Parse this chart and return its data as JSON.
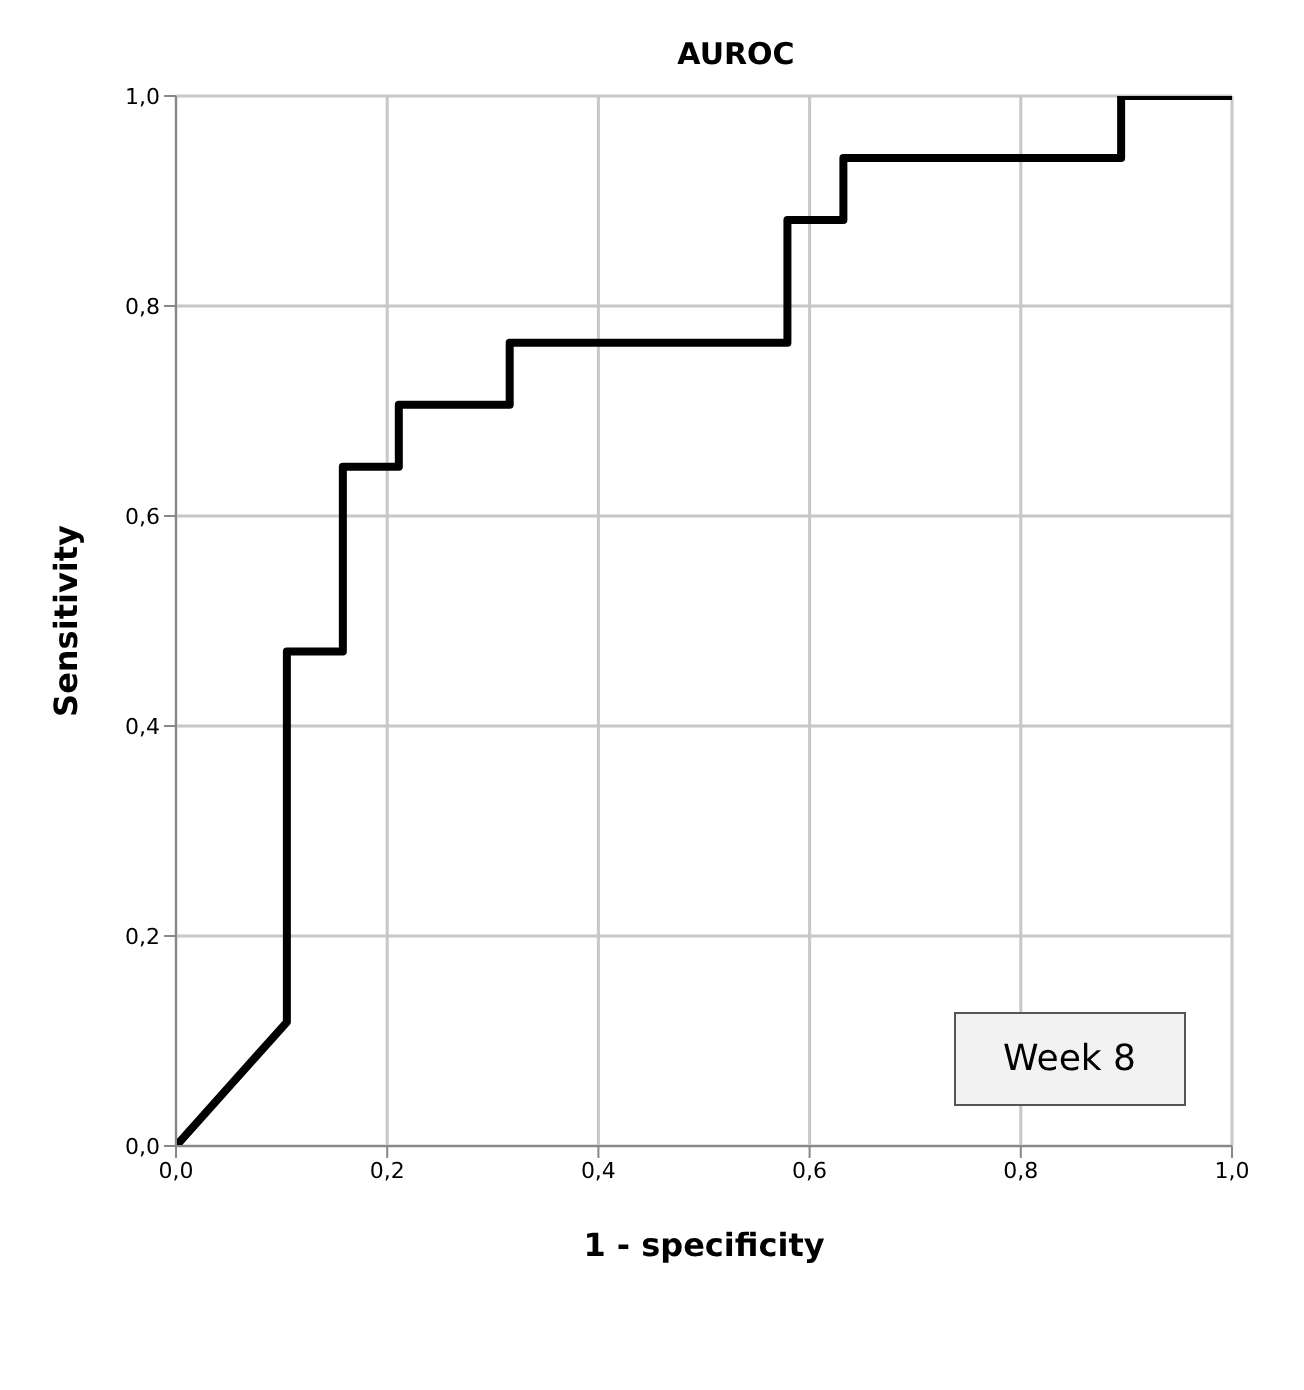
{
  "chart_data": {
    "type": "line",
    "title": "AUROC",
    "xlabel": "1 - specificity",
    "ylabel": "Sensitivity",
    "x": [
      0,
      0.105,
      0.105,
      0.158,
      0.158,
      0.211,
      0.211,
      0.316,
      0.316,
      0.579,
      0.579,
      0.632,
      0.632,
      0.895,
      0.895,
      1.0
    ],
    "series": [
      {
        "color": "#000000",
        "values": [
          0,
          0.118,
          0.471,
          0.471,
          0.647,
          0.647,
          0.706,
          0.706,
          0.765,
          0.765,
          0.882,
          0.882,
          0.941,
          0.941,
          1.0,
          1.0
        ]
      }
    ],
    "xlim": [
      0,
      1
    ],
    "ylim": [
      0,
      1
    ],
    "xticks": [
      {
        "value": 0,
        "label": "0,0"
      },
      {
        "value": 0.2,
        "label": "0,2"
      },
      {
        "value": 0.4,
        "label": "0,4"
      },
      {
        "value": 0.6,
        "label": "0,6"
      },
      {
        "value": 0.8,
        "label": "0,8"
      },
      {
        "value": 1,
        "label": "1,0"
      }
    ],
    "yticks": [
      {
        "value": 0,
        "label": "0,0"
      },
      {
        "value": 0.2,
        "label": "0,2"
      },
      {
        "value": 0.4,
        "label": "0,4"
      },
      {
        "value": 0.6,
        "label": "0,6"
      },
      {
        "value": 0.8,
        "label": "0,8"
      },
      {
        "value": 1,
        "label": "1,0"
      }
    ],
    "grid": true,
    "marker": "none",
    "line_style": "solid",
    "legend": false,
    "annotations": [
      "Week 8"
    ]
  }
}
